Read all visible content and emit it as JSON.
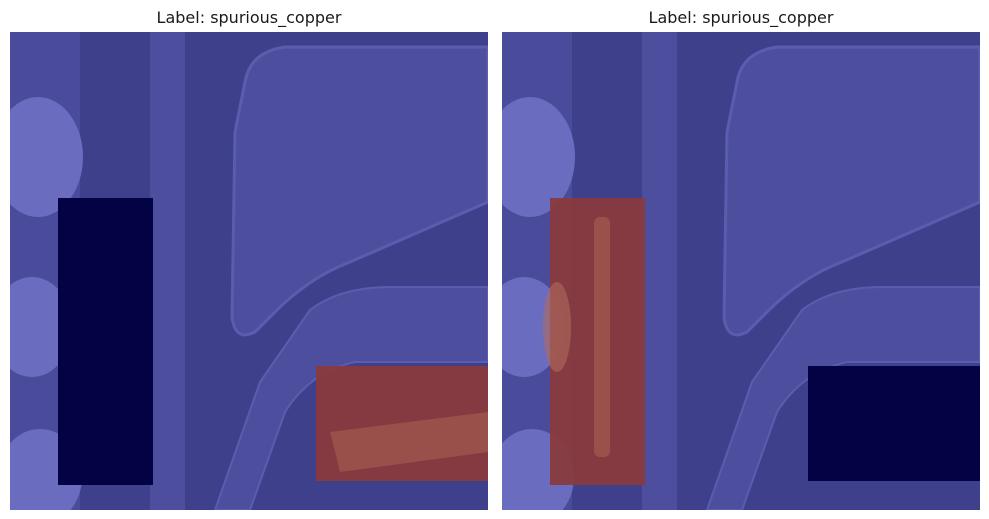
{
  "panels": [
    {
      "title": "Label: spurious_copper"
    },
    {
      "title": "Label: spurious_copper"
    }
  ],
  "colors": {
    "background": "#3f408c",
    "trace": "#4d4f9e",
    "trace_edge": "#5a5caf",
    "pad": "#6a6cc0",
    "mask_dark": "#020244",
    "mask_red": "#8a3a3a"
  }
}
